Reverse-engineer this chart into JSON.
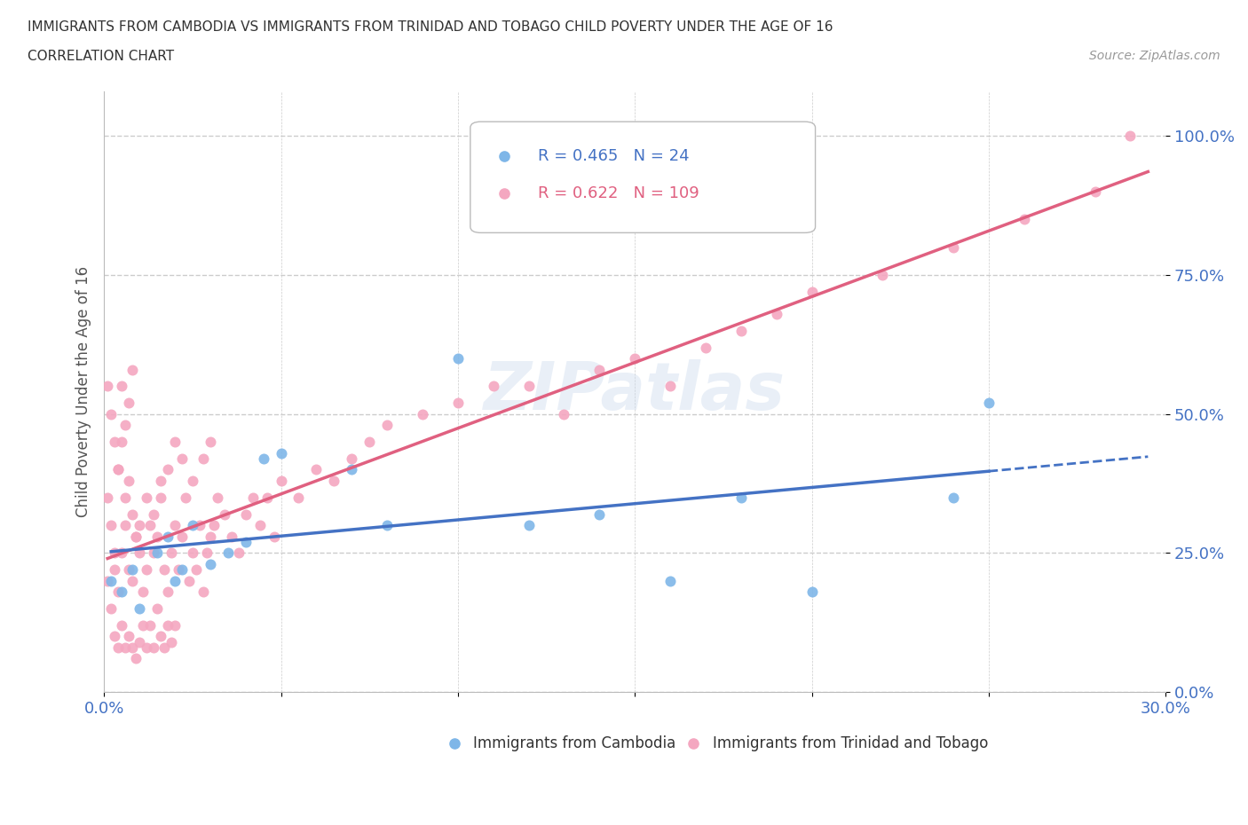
{
  "title_line1": "IMMIGRANTS FROM CAMBODIA VS IMMIGRANTS FROM TRINIDAD AND TOBAGO CHILD POVERTY UNDER THE AGE OF 16",
  "title_line2": "CORRELATION CHART",
  "source_text": "Source: ZipAtlas.com",
  "ylabel": "Child Poverty Under the Age of 16",
  "xmin": 0.0,
  "xmax": 0.3,
  "ymin": 0.0,
  "ymax": 1.08,
  "yticks": [
    0.0,
    0.25,
    0.5,
    0.75,
    1.0
  ],
  "ytick_labels": [
    "0.0%",
    "25.0%",
    "50.0%",
    "75.0%",
    "100.0%"
  ],
  "xticks": [
    0.0,
    0.05,
    0.1,
    0.15,
    0.2,
    0.25,
    0.3
  ],
  "xtick_labels": [
    "0.0%",
    "",
    "",
    "",
    "",
    "",
    "30.0%"
  ],
  "watermark": "ZIPatlas",
  "color_cambodia": "#7EB6E8",
  "color_tt": "#F4A7C0",
  "line_color_cambodia": "#4472C4",
  "line_color_tt": "#E06080",
  "legend_R_cambodia": "0.465",
  "legend_N_cambodia": "24",
  "legend_R_tt": "0.622",
  "legend_N_tt": "109",
  "cambodia_x": [
    0.002,
    0.005,
    0.008,
    0.01,
    0.015,
    0.018,
    0.02,
    0.022,
    0.025,
    0.03,
    0.035,
    0.04,
    0.045,
    0.05,
    0.07,
    0.08,
    0.1,
    0.12,
    0.14,
    0.16,
    0.18,
    0.2,
    0.24,
    0.25
  ],
  "cambodia_y": [
    0.2,
    0.18,
    0.22,
    0.15,
    0.25,
    0.28,
    0.2,
    0.22,
    0.3,
    0.23,
    0.25,
    0.27,
    0.42,
    0.43,
    0.4,
    0.3,
    0.6,
    0.3,
    0.32,
    0.2,
    0.35,
    0.18,
    0.35,
    0.52
  ],
  "tt_x": [
    0.001,
    0.002,
    0.003,
    0.003,
    0.004,
    0.004,
    0.005,
    0.005,
    0.006,
    0.006,
    0.007,
    0.007,
    0.008,
    0.008,
    0.009,
    0.009,
    0.01,
    0.01,
    0.011,
    0.011,
    0.012,
    0.012,
    0.013,
    0.013,
    0.014,
    0.014,
    0.015,
    0.015,
    0.016,
    0.016,
    0.017,
    0.017,
    0.018,
    0.018,
    0.019,
    0.019,
    0.02,
    0.02,
    0.021,
    0.022,
    0.023,
    0.024,
    0.025,
    0.026,
    0.027,
    0.028,
    0.029,
    0.03,
    0.031,
    0.032,
    0.034,
    0.036,
    0.038,
    0.04,
    0.042,
    0.044,
    0.046,
    0.048,
    0.05,
    0.055,
    0.06,
    0.065,
    0.07,
    0.075,
    0.08,
    0.09,
    0.1,
    0.11,
    0.12,
    0.13,
    0.14,
    0.15,
    0.16,
    0.17,
    0.18,
    0.19,
    0.2,
    0.22,
    0.24,
    0.26,
    0.28,
    0.001,
    0.002,
    0.003,
    0.004,
    0.005,
    0.006,
    0.007,
    0.008,
    0.009,
    0.01,
    0.012,
    0.014,
    0.016,
    0.018,
    0.02,
    0.022,
    0.025,
    0.028,
    0.03,
    0.001,
    0.002,
    0.003,
    0.004,
    0.005,
    0.006,
    0.007,
    0.008,
    0.29
  ],
  "tt_y": [
    0.2,
    0.15,
    0.22,
    0.1,
    0.18,
    0.08,
    0.25,
    0.12,
    0.3,
    0.08,
    0.22,
    0.1,
    0.2,
    0.08,
    0.28,
    0.06,
    0.25,
    0.09,
    0.18,
    0.12,
    0.22,
    0.08,
    0.3,
    0.12,
    0.25,
    0.08,
    0.28,
    0.15,
    0.35,
    0.1,
    0.22,
    0.08,
    0.18,
    0.12,
    0.25,
    0.09,
    0.3,
    0.12,
    0.22,
    0.28,
    0.35,
    0.2,
    0.25,
    0.22,
    0.3,
    0.18,
    0.25,
    0.28,
    0.3,
    0.35,
    0.32,
    0.28,
    0.25,
    0.32,
    0.35,
    0.3,
    0.35,
    0.28,
    0.38,
    0.35,
    0.4,
    0.38,
    0.42,
    0.45,
    0.48,
    0.5,
    0.52,
    0.55,
    0.55,
    0.5,
    0.58,
    0.6,
    0.55,
    0.62,
    0.65,
    0.68,
    0.72,
    0.75,
    0.8,
    0.85,
    0.9,
    0.35,
    0.3,
    0.25,
    0.4,
    0.45,
    0.35,
    0.38,
    0.32,
    0.28,
    0.3,
    0.35,
    0.32,
    0.38,
    0.4,
    0.45,
    0.42,
    0.38,
    0.42,
    0.45,
    0.55,
    0.5,
    0.45,
    0.4,
    0.55,
    0.48,
    0.52,
    0.58,
    1.0
  ]
}
